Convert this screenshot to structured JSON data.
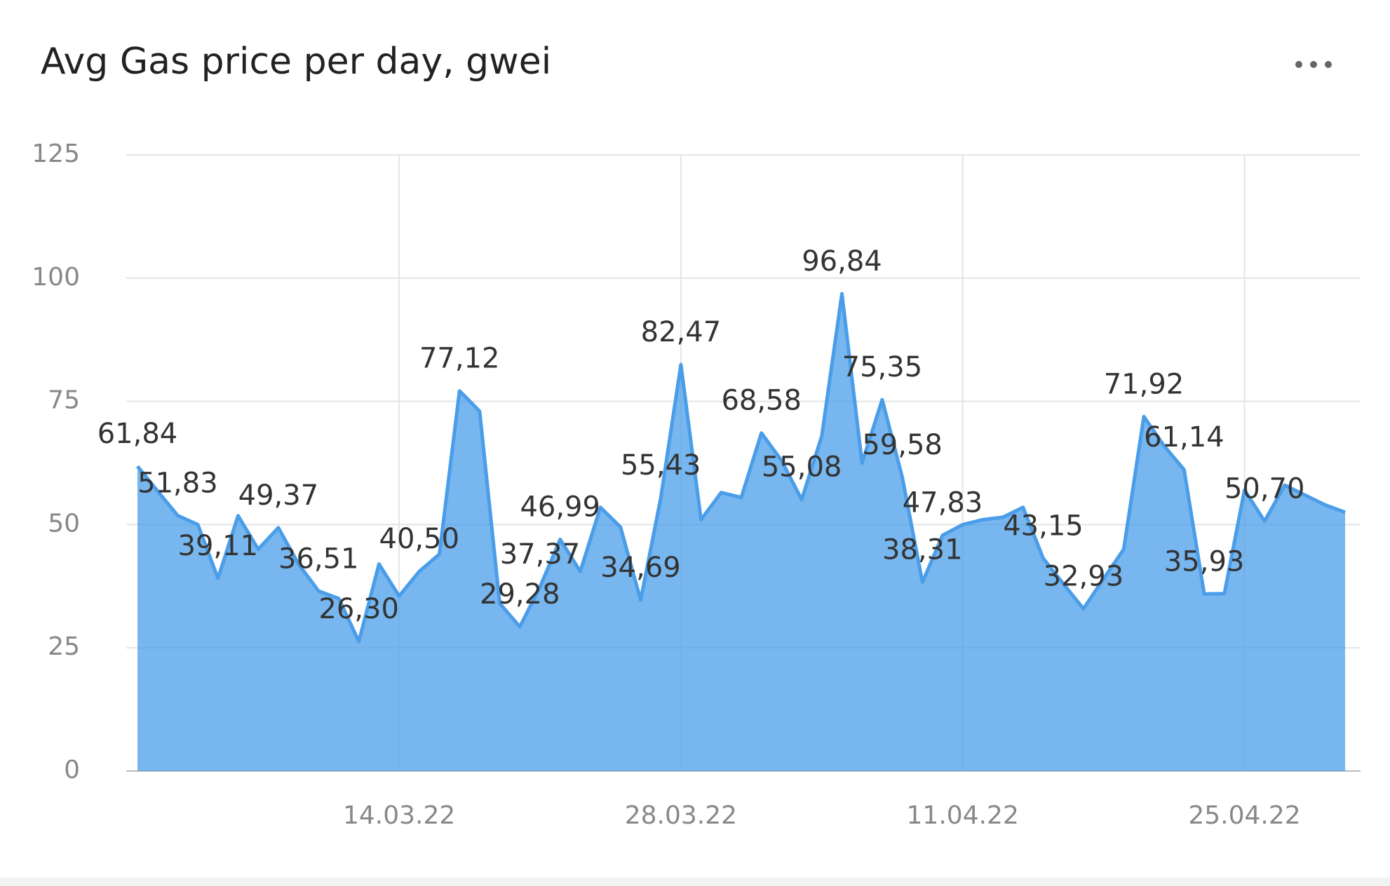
{
  "chart_data": {
    "type": "area",
    "title": "Avg Gas price per day, gwei",
    "x": [
      "01.03.22",
      "02.03.22",
      "03.03.22",
      "04.03.22",
      "05.03.22",
      "06.03.22",
      "07.03.22",
      "08.03.22",
      "09.03.22",
      "10.03.22",
      "11.03.22",
      "12.03.22",
      "13.03.22",
      "14.03.22",
      "15.03.22",
      "16.03.22",
      "17.03.22",
      "18.03.22",
      "19.03.22",
      "20.03.22",
      "21.03.22",
      "22.03.22",
      "23.03.22",
      "24.03.22",
      "25.03.22",
      "26.03.22",
      "27.03.22",
      "28.03.22",
      "29.03.22",
      "30.03.22",
      "31.03.22",
      "01.04.22",
      "02.04.22",
      "03.04.22",
      "04.04.22",
      "05.04.22",
      "06.04.22",
      "07.04.22",
      "08.04.22",
      "09.04.22",
      "10.04.22",
      "11.04.22",
      "12.04.22",
      "13.04.22",
      "14.04.22",
      "15.04.22",
      "16.04.22",
      "17.04.22",
      "18.04.22",
      "19.04.22",
      "20.04.22",
      "21.04.22",
      "22.04.22",
      "23.04.22",
      "24.04.22",
      "25.04.22",
      "26.04.22",
      "27.04.22",
      "28.04.22",
      "29.04.22",
      "30.04.22"
    ],
    "values": [
      61.84,
      56.8,
      51.83,
      50,
      39.11,
      51.8,
      45,
      49.37,
      42,
      36.51,
      35,
      26.3,
      42,
      35.5,
      40.5,
      44,
      77.12,
      73,
      34,
      29.28,
      37.37,
      46.99,
      40.5,
      53.5,
      49.5,
      34.69,
      55.43,
      82.47,
      51,
      56.5,
      55.5,
      68.58,
      63,
      55.08,
      68,
      96.84,
      62.5,
      75.35,
      59.58,
      38.31,
      47.83,
      50,
      51,
      51.5,
      53.5,
      43.15,
      38,
      32.93,
      39,
      45,
      71.92,
      66,
      61.14,
      35.93,
      36,
      57,
      50.7,
      58,
      56,
      54,
      52.5
    ],
    "value_labels": [
      "61,84",
      null,
      "51,83",
      null,
      "39,11",
      null,
      null,
      "49,37",
      null,
      "36,51",
      null,
      "26,30",
      null,
      null,
      "40,50",
      null,
      "77,12",
      null,
      null,
      "29,28",
      "37,37",
      "46,99",
      null,
      null,
      null,
      "34,69",
      "55,43",
      "82,47",
      null,
      null,
      null,
      "68,58",
      null,
      "55,08",
      null,
      "96,84",
      null,
      "75,35",
      "59,58",
      "38,31",
      "47,83",
      null,
      null,
      null,
      null,
      "43,15",
      null,
      "32,93",
      null,
      null,
      "71,92",
      null,
      "61,14",
      "35,93",
      null,
      null,
      "50,70",
      null,
      null,
      null,
      null
    ],
    "color": "#4a9de8",
    "xlim": [
      "01.03.22",
      "30.04.22"
    ],
    "xticks": [
      "14.03.22",
      "28.03.22",
      "11.04.22",
      "25.04.22"
    ],
    "ylim": [
      0,
      125
    ],
    "yticks": [
      0,
      25,
      50,
      75,
      100,
      125
    ],
    "grid": true
  }
}
